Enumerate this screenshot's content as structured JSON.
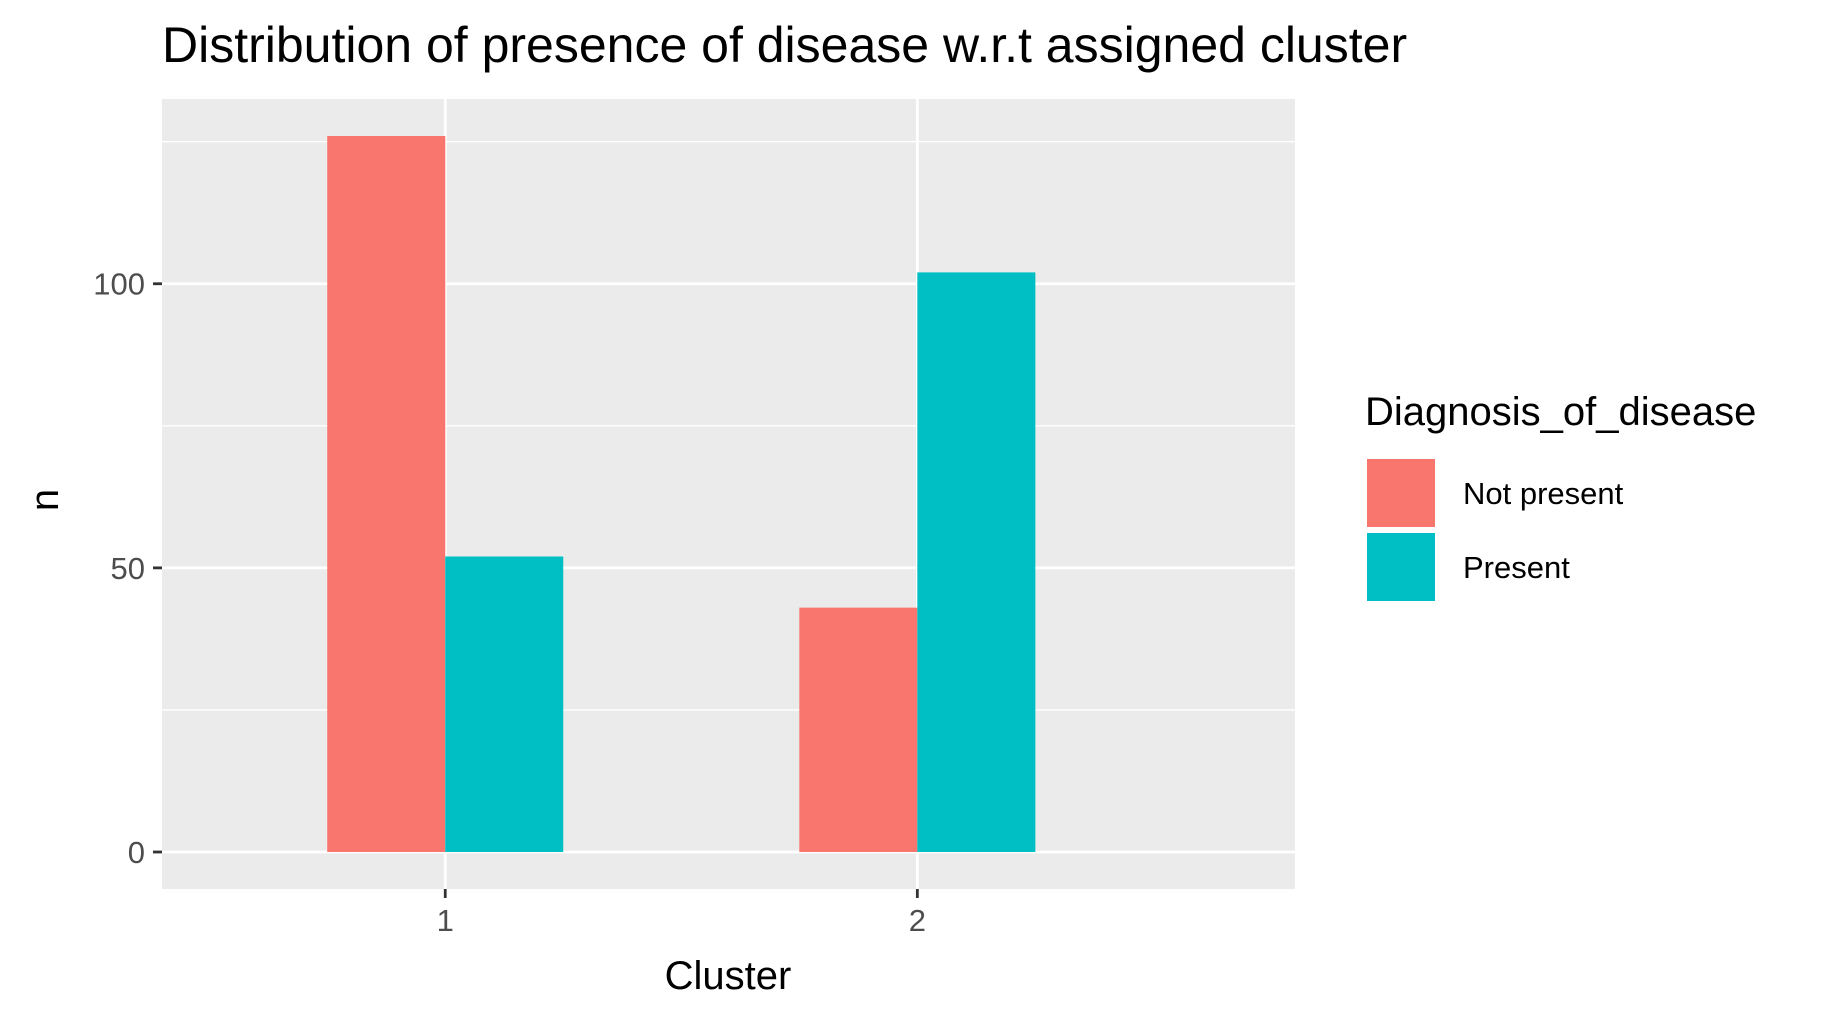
{
  "chart_data": {
    "type": "bar",
    "title": "Distribution of presence of disease w.r.t assigned cluster",
    "xlabel": "Cluster",
    "ylabel": "n",
    "categories": [
      "1",
      "2"
    ],
    "series": [
      {
        "name": "Not present",
        "values": [
          126,
          43
        ],
        "color": "#F8766D"
      },
      {
        "name": "Present",
        "values": [
          52,
          102
        ],
        "color": "#00BFC4"
      }
    ],
    "ylim": [
      0,
      126
    ],
    "y_ticks": [
      0,
      50,
      100
    ],
    "grid": true,
    "panel_color": "#EBEBEB",
    "legend": {
      "title": "Diagnosis_of_disease",
      "position": "right"
    }
  }
}
